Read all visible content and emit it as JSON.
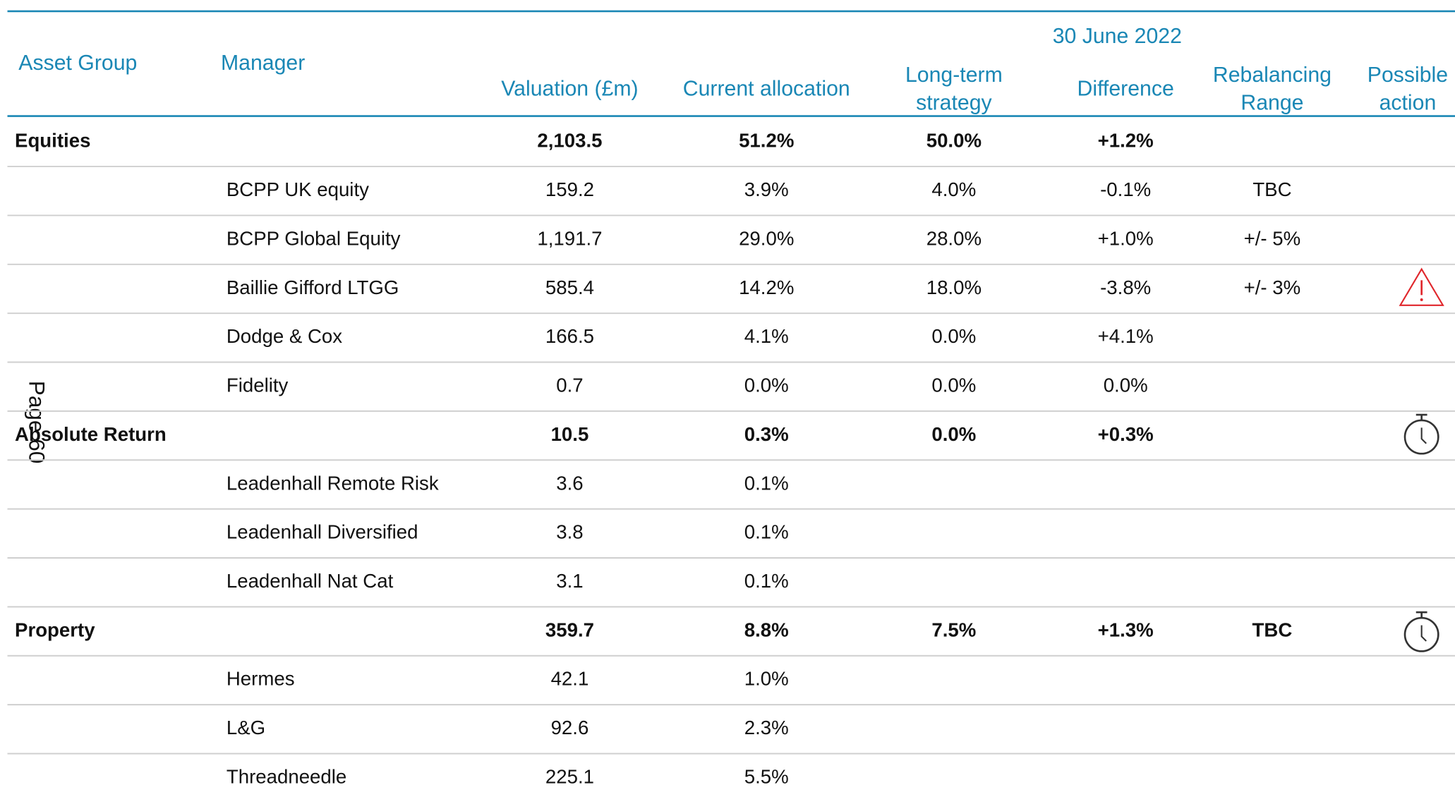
{
  "header": {
    "date": "30 June 2022",
    "columns": [
      {
        "lines": [
          "Asset Group"
        ]
      },
      {
        "lines": [
          "Manager"
        ]
      },
      {
        "lines": [
          "Valuation (£m)"
        ]
      },
      {
        "lines": [
          "Current allocation"
        ]
      },
      {
        "lines": [
          "Long-term",
          "strategy"
        ]
      },
      {
        "lines": [
          "Difference"
        ]
      },
      {
        "lines": [
          "Rebalancing",
          "Range"
        ]
      },
      {
        "lines": [
          "Possible",
          "action"
        ]
      }
    ]
  },
  "page_label": "Page 60",
  "table": {
    "rows": [
      {
        "group": "Equities",
        "valuation": "2,103.5",
        "current": "51.2%",
        "strategy": "50.0%",
        "difference": "+1.2%"
      },
      {
        "manager": "BCPP UK equity",
        "valuation": "159.2",
        "current": "3.9%",
        "strategy": "4.0%",
        "difference": "-0.1%",
        "range": "TBC"
      },
      {
        "manager": "BCPP Global Equity",
        "valuation": "1,191.7",
        "current": "29.0%",
        "strategy": "28.0%",
        "difference": "+1.0%",
        "range": "+/- 5%"
      },
      {
        "manager": "Baillie Gifford LTGG",
        "valuation": "585.4",
        "current": "14.2%",
        "strategy": "18.0%",
        "difference": "-3.8%",
        "range": "+/- 3%"
      },
      {
        "manager": "Dodge & Cox",
        "valuation": "166.5",
        "current": "4.1%",
        "strategy": "0.0%",
        "difference": "+4.1%"
      },
      {
        "manager": "Fidelity",
        "valuation": "0.7",
        "current": "0.0%",
        "strategy": "0.0%",
        "difference": "0.0%"
      },
      {
        "group": "Absolute Return",
        "valuation": "10.5",
        "current": "0.3%",
        "strategy": "0.0%",
        "difference": "+0.3%"
      },
      {
        "manager": "Leadenhall Remote Risk",
        "valuation": "3.6",
        "current": "0.1%"
      },
      {
        "manager": "Leadenhall Diversified",
        "valuation": "3.8",
        "current": "0.1%"
      },
      {
        "manager": "Leadenhall Nat Cat",
        "valuation": "3.1",
        "current": "0.1%"
      },
      {
        "group": "Property",
        "valuation": "359.7",
        "current": "8.8%",
        "strategy": "7.5%",
        "difference": "+1.3%",
        "range": "TBC"
      },
      {
        "manager": "Hermes",
        "valuation": "42.1",
        "current": "1.0%"
      },
      {
        "manager": "L&G",
        "valuation": "92.6",
        "current": "2.3%"
      },
      {
        "manager": "Threadneedle",
        "valuation": "225.1",
        "current": "5.5%"
      }
    ]
  }
}
